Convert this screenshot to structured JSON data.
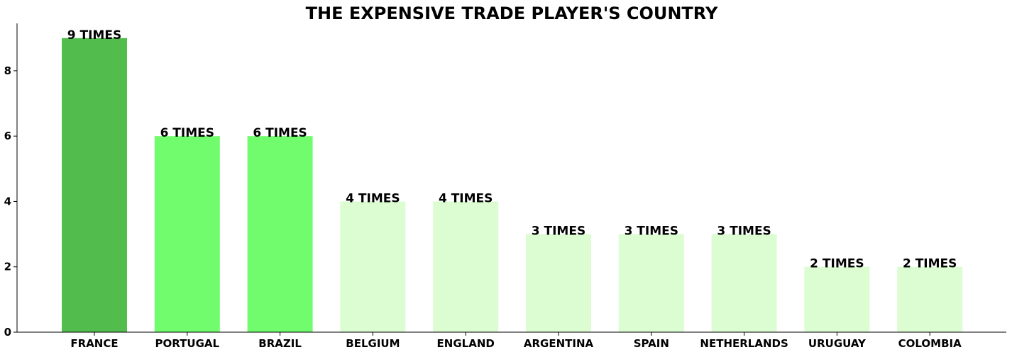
{
  "chart_data": {
    "type": "bar",
    "title": "THE EXPENSIVE TRADE PLAYER'S COUNTRY",
    "xlabel": "",
    "ylabel": "",
    "categories": [
      "FRANCE",
      "PORTUGAL",
      "BRAZIL",
      "BELGIUM",
      "ENGLAND",
      "ARGENTINA",
      "SPAIN",
      "NETHERLANDS",
      "URUGUAY",
      "COLOMBIA"
    ],
    "values": [
      9,
      6,
      6,
      4,
      4,
      3,
      3,
      3,
      2,
      2
    ],
    "data_labels": [
      "9 TIMES",
      "6 TIMES",
      "6 TIMES",
      "4 TIMES",
      "4 TIMES",
      "3 TIMES",
      "3 TIMES",
      "3 TIMES",
      "2 TIMES",
      "2 TIMES"
    ],
    "bar_colors": [
      "#52bd4d",
      "#70fc6c",
      "#70fc6c",
      "#dbfdd1",
      "#dbfdd1",
      "#dbfdd1",
      "#dbfdd1",
      "#dbfdd1",
      "#dbfdd1",
      "#dbfdd1"
    ],
    "yticks": [
      "0",
      "2",
      "4",
      "6",
      "8"
    ],
    "ytick_values": [
      0,
      2,
      4,
      6,
      8
    ],
    "ylim": [
      0,
      9.45
    ],
    "grid": false,
    "legend": "none"
  }
}
